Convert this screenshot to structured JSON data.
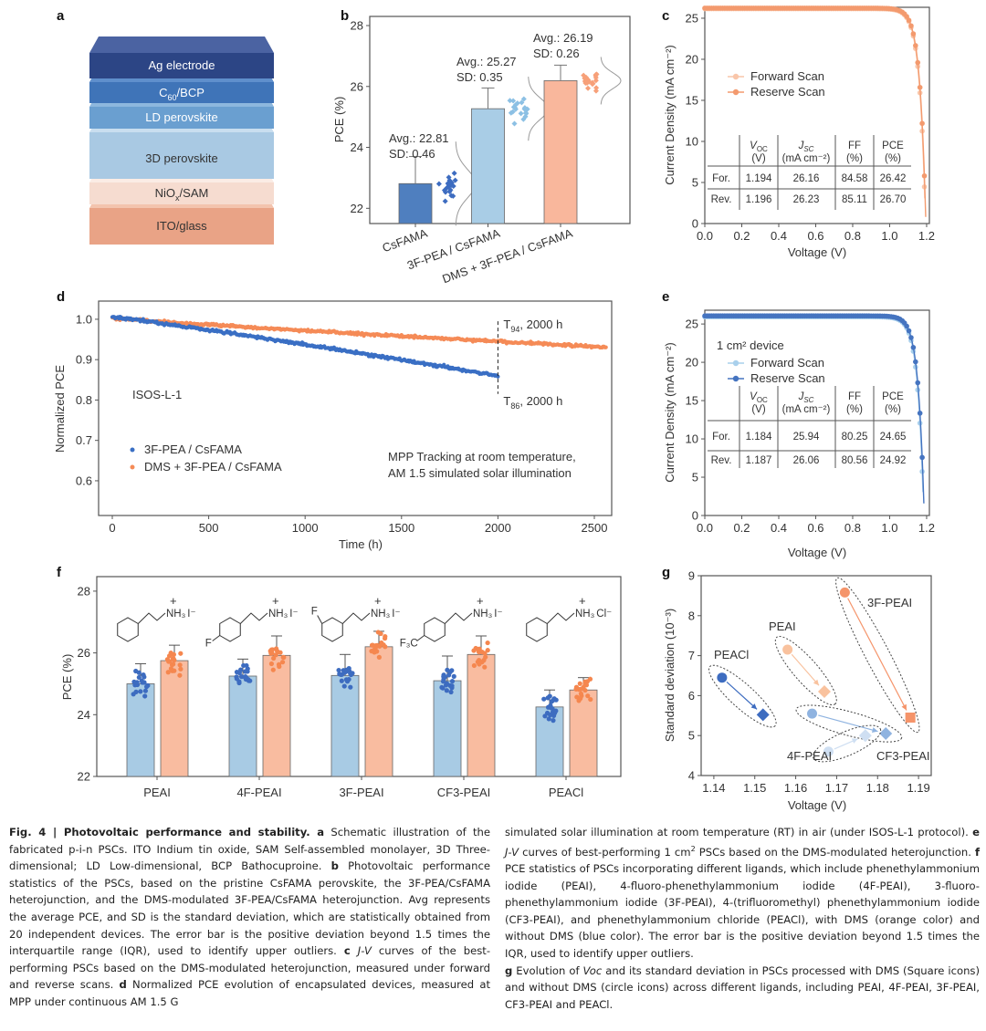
{
  "panel_labels": [
    "a",
    "b",
    "c",
    "d",
    "e",
    "f",
    "g"
  ],
  "panel_a": {
    "layers": [
      {
        "label": "ITO/glass",
        "front": "#e9a386",
        "top": "#f3c4ae",
        "text": "#333333"
      },
      {
        "label": "NiO",
        "sub": "x",
        "rest": "/SAM",
        "front": "#f6dcd0",
        "top": "#fbece5",
        "text": "#333333"
      },
      {
        "label": "3D perovskite",
        "front": "#a9c9e3",
        "top": "#c9deef",
        "text": "#333333"
      },
      {
        "label": "LD perovskite",
        "front": "#6a9fd0",
        "top": "#8db7de",
        "text": "#ffffff"
      },
      {
        "label": "C",
        "sub": "60",
        "rest": "/BCP",
        "front": "#3f74b8",
        "top": "#5f8fcc",
        "text": "#ffffff"
      },
      {
        "label": "Ag electrode",
        "front": "#2c4585",
        "top": "#4b63a2",
        "text": "#ffffff"
      }
    ]
  },
  "chart_data": [
    {
      "type": "bar",
      "panel": "b",
      "categories": [
        "CsFAMA",
        "3F-PEA / CsFAMA",
        "DMS + 3F-PEA / CsFAMA"
      ],
      "avg": [
        22.81,
        25.27,
        26.19
      ],
      "sd": [
        0.46,
        0.35,
        0.26
      ],
      "error_top": [
        23.7,
        25.95,
        26.7
      ],
      "annotations": [
        [
          "Avg.: 22.81",
          "SD: 0.46"
        ],
        [
          "Avg.: 25.27",
          "SD: 0.35"
        ],
        [
          "Avg.: 26.19",
          "SD: 0.26"
        ]
      ],
      "bar_colors": [
        "#4f7fbf",
        "#a9cde6",
        "#f9b79c"
      ],
      "dot_colors": [
        "#3d6cc0",
        "#8cc0e4",
        "#f7a079"
      ],
      "ylabel": "PCE (%)",
      "ylim": [
        21.5,
        28.3
      ],
      "yticks": [
        "22",
        "24",
        "26",
        "28"
      ]
    },
    {
      "type": "line",
      "panel": "c",
      "xlabel": "Voltage (V)",
      "ylabel": "Current Density (mA cm⁻²)",
      "xlim": [
        0,
        1.215
      ],
      "ylim": [
        0,
        26.33
      ],
      "xticks": [
        "0.0",
        "0.2",
        "0.4",
        "0.6",
        "0.8",
        "1.0",
        "1.2"
      ],
      "yticks": [
        "0",
        "5",
        "10",
        "15",
        "20",
        "25"
      ],
      "series": [
        {
          "name": "Forward Scan",
          "voc": 1.194,
          "jsc": 26.16,
          "color": "#f9c6aa"
        },
        {
          "name": "Reserve Scan",
          "voc": 1.196,
          "jsc": 26.23,
          "color": "#f39a6e"
        }
      ],
      "table": {
        "headers": [
          [
            "V",
            "OC",
            "(V)"
          ],
          [
            "J",
            "SC",
            "(mA cm⁻²)"
          ],
          [
            "FF",
            "",
            "(%)"
          ],
          [
            "PCE",
            "",
            "(%)"
          ]
        ],
        "rows": [
          [
            "For.",
            "1.194",
            "26.16",
            "84.58",
            "26.42"
          ],
          [
            "Rev.",
            "1.196",
            "26.23",
            "85.11",
            "26.70"
          ]
        ]
      }
    },
    {
      "type": "scatter",
      "panel": "d",
      "xlabel": "Time (h)",
      "ylabel": "Normalized PCE",
      "xlim": [
        -71,
        2590
      ],
      "ylim": [
        0.514,
        1.045
      ],
      "xticks": [
        "0",
        "500",
        "1000",
        "1500",
        "2000",
        "2500"
      ],
      "yticks": [
        "0.6",
        "0.7",
        "0.8",
        "0.9",
        "1.0"
      ],
      "series": [
        {
          "name": "3F-PEA / CsFAMA",
          "color": "#3a6fc4",
          "start": 1.005,
          "end_time": 2000,
          "end_value": 0.86
        },
        {
          "name": "DMS + 3F-PEA / CsFAMA",
          "color": "#f58b57",
          "start": 1.003,
          "end_time": 2560,
          "value_at_2000": 0.945,
          "value_at_2500": 0.932
        }
      ],
      "annotations": {
        "t94": {
          "T": "T",
          "sub": "94",
          "rest": ", 2000 h"
        },
        "t86": {
          "T": "T",
          "sub": "86",
          "rest": ", 2000 h"
        },
        "protocol": "ISOS-L-1",
        "conditions": [
          "MPP Tracking at room temperature,",
          "AM 1.5 simulated solar illumination"
        ]
      },
      "marker_time": 2000
    },
    {
      "type": "line",
      "panel": "e",
      "xlabel": "Voltage (V)",
      "ylabel": "Current Density (mA cm⁻²)",
      "xlim": [
        0,
        1.215
      ],
      "ylim": [
        0,
        26.8
      ],
      "xticks": [
        "0.0",
        "0.2",
        "0.4",
        "0.6",
        "0.8",
        "1.0",
        "1.2"
      ],
      "yticks": [
        "0",
        "5",
        "10",
        "15",
        "20",
        "25"
      ],
      "device_label": "1 cm² device",
      "series": [
        {
          "name": "Forward Scan",
          "voc": 1.184,
          "jsc": 25.94,
          "color": "#a9d0ec"
        },
        {
          "name": "Reserve Scan",
          "voc": 1.187,
          "jsc": 26.06,
          "color": "#4574c0"
        }
      ],
      "table": {
        "headers": [
          [
            "V",
            "OC",
            "(V)"
          ],
          [
            "J",
            "SC",
            "(mA cm⁻²)"
          ],
          [
            "FF",
            "",
            "(%)"
          ],
          [
            "PCE",
            "",
            "(%)"
          ]
        ],
        "rows": [
          [
            "For.",
            "1.184",
            "25.94",
            "80.25",
            "24.65"
          ],
          [
            "Rev.",
            "1.187",
            "26.06",
            "80.56",
            "24.92"
          ]
        ]
      }
    },
    {
      "type": "bar",
      "panel": "f",
      "ylabel": "PCE (%)",
      "ylim": [
        22,
        28.47
      ],
      "yticks": [
        "22",
        "24",
        "26",
        "28"
      ],
      "categories": [
        "PEAI",
        "4F-PEAI",
        "3F-PEAI",
        "CF3-PEAI",
        "PEACl"
      ],
      "series": [
        {
          "name": "without DMS",
          "color": "#a8cbe4",
          "dot_color": "#3d6cc0",
          "values": [
            25.0,
            25.25,
            25.27,
            25.1,
            24.25
          ],
          "error_top": [
            25.65,
            25.8,
            25.95,
            25.9,
            24.8
          ]
        },
        {
          "name": "with DMS",
          "color": "#f9bca0",
          "dot_color": "#f5874f",
          "values": [
            25.75,
            25.92,
            26.2,
            25.95,
            24.8
          ],
          "error_top": [
            26.25,
            26.55,
            26.7,
            26.55,
            25.2
          ]
        }
      ],
      "molecules": [
        {
          "substituent": "",
          "position": "",
          "cation": "NH₃",
          "anion": "I⁻"
        },
        {
          "substituent": "F",
          "position": "para",
          "cation": "NH₃",
          "anion": "I⁻"
        },
        {
          "substituent": "F",
          "position": "meta",
          "cation": "NH₃",
          "anion": "I⁻"
        },
        {
          "substituent": "F₃C",
          "position": "para",
          "cation": "NH₃",
          "anion": "I⁻"
        },
        {
          "substituent": "",
          "position": "",
          "cation": "NH₃",
          "anion": "Cl⁻"
        }
      ],
      "plus": "+"
    },
    {
      "type": "scatter",
      "panel": "g",
      "xlabel": "Voltage (V)",
      "ylabel": "Standard deviation (10⁻³)",
      "xlim": [
        1.1369,
        1.1931
      ],
      "ylim": [
        4,
        9
      ],
      "xticks": [
        "1.14",
        "1.15",
        "1.16",
        "1.17",
        "1.18",
        "1.19"
      ],
      "yticks": [
        "4",
        "5",
        "6",
        "7",
        "8",
        "9"
      ],
      "groups": [
        {
          "name": "PEACl",
          "without_dms": [
            1.142,
            6.45
          ],
          "with_dms": [
            1.152,
            5.52
          ],
          "marker": "diamond",
          "color": "#3d6cc0"
        },
        {
          "name": "PEAI",
          "without_dms": [
            1.158,
            7.15
          ],
          "with_dms": [
            1.167,
            6.1
          ],
          "marker": "diamond",
          "color": "#f9c29e"
        },
        {
          "name": "3F-PEAI",
          "without_dms": [
            1.172,
            8.58
          ],
          "with_dms": [
            1.188,
            5.45
          ],
          "marker": "square",
          "color": "#f5946a"
        },
        {
          "name": "CF3-PEAI",
          "without_dms": [
            1.164,
            5.55
          ],
          "with_dms": [
            1.182,
            5.05
          ],
          "marker": "diamond",
          "color": "#8fb3e0"
        },
        {
          "name": "4F-PEAI",
          "without_dms": [
            1.168,
            4.6
          ],
          "with_dms": [
            1.177,
            5.0
          ],
          "marker": "diamond",
          "color": "#cfdff2"
        }
      ]
    }
  ],
  "caption": {
    "col1": [
      {
        "s": "b",
        "t": "Fig. 4 | Photovoltaic performance and stability."
      },
      {
        "s": "b",
        "t": " a"
      },
      {
        "s": "n",
        "t": " Schematic illustration of the fabricated p-i-n PSCs. ITO Indium tin oxide, SAM Self-assembled monolayer, 3D Three-dimensional; LD Low-dimensional, BCP Bathocuproine. "
      },
      {
        "s": "b",
        "t": "b"
      },
      {
        "s": "n",
        "t": " Photovoltaic performance statistics of the PSCs, based on the pristine CsFAMA perovskite, the 3F-PEA/CsFAMA heterojunction, and the DMS-modulated 3F-PEA/CsFAMA heterojunction. Avg represents the average PCE, and SD is the standard deviation, which are statistically obtained from 20 independent devices. The error bar is the positive deviation beyond 1.5 times the interquartile range (IQR), used to identify upper outliers. "
      },
      {
        "s": "b",
        "t": "c"
      },
      {
        "s": "i",
        "t": " J-V"
      },
      {
        "s": "n",
        "t": " curves of the best-performing PSCs based on the DMS-modulated heterojunction, measured under forward and reverse scans. "
      },
      {
        "s": "b",
        "t": "d"
      },
      {
        "s": "n",
        "t": " Normalized PCE evolution of encapsulated devices, measured at MPP under continuous AM 1.5 G"
      }
    ],
    "col2": [
      {
        "s": "n",
        "t": "simulated solar illumination at room temperature (RT) in air (under ISOS-L-1 protocol). "
      },
      {
        "s": "b",
        "t": "e"
      },
      {
        "s": "i",
        "t": " J-V"
      },
      {
        "s": "n",
        "t": " curves of best-performing 1 cm"
      },
      {
        "s": "sup",
        "t": "2"
      },
      {
        "s": "n",
        "t": " PSCs based on the DMS-modulated heterojunction. "
      },
      {
        "s": "b",
        "t": "f"
      },
      {
        "s": "n",
        "t": " PCE statistics of PSCs incorporating different ligands, which include phenethylammonium iodide (PEAI), 4-fluoro-phenethylammonium iodide (4F-PEAI), 3-fluoro-phenethylammonium iodide (3F-PEAI), 4-(trifluoromethyl) phenethylammonium iodide (CF3-PEAI), and phenethylammonium chloride (PEACl), with DMS (orange color) and without DMS (blue color). The error bar is the positive deviation beyond 1.5 times the IQR, used to identify upper outliers."
      },
      {
        "s": "br",
        "t": ""
      },
      {
        "s": "b",
        "t": "g"
      },
      {
        "s": "n",
        "t": " Evolution of "
      },
      {
        "s": "i",
        "t": "Voc"
      },
      {
        "s": "n",
        "t": " and its standard deviation in PSCs processed with DMS (Square icons) and without DMS (circle icons) across different ligands, including PEAI, 4F-PEAI, 3F-PEAI, CF3-PEAI and PEACl."
      }
    ]
  }
}
